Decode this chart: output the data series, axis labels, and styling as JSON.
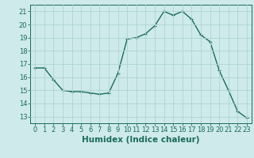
{
  "x": [
    0,
    1,
    2,
    3,
    4,
    5,
    6,
    7,
    8,
    9,
    10,
    11,
    12,
    13,
    14,
    15,
    16,
    17,
    18,
    19,
    20,
    21,
    22,
    23
  ],
  "y": [
    16.7,
    16.7,
    15.8,
    15.0,
    14.9,
    14.9,
    14.8,
    14.7,
    14.8,
    16.3,
    18.9,
    19.0,
    19.3,
    19.9,
    21.0,
    20.7,
    21.0,
    20.4,
    19.2,
    18.7,
    16.5,
    15.0,
    13.4,
    12.9
  ],
  "line_color": "#1a6b5a",
  "marker": "+",
  "markersize": 3.5,
  "linewidth": 1.0,
  "bg_color": "#ceeaea",
  "grid_color": "#add4d4",
  "xlabel": "Humidex (Indice chaleur)",
  "xlabel_fontsize": 7.5,
  "ylim": [
    12.5,
    21.5
  ],
  "yticks": [
    13,
    14,
    15,
    16,
    17,
    18,
    19,
    20,
    21
  ],
  "xticks": [
    0,
    1,
    2,
    3,
    4,
    5,
    6,
    7,
    8,
    9,
    10,
    11,
    12,
    13,
    14,
    15,
    16,
    17,
    18,
    19,
    20,
    21,
    22,
    23
  ],
  "tick_fontsize": 6,
  "tick_color": "#1a6b5a",
  "spine_color": "#1a6b5a"
}
